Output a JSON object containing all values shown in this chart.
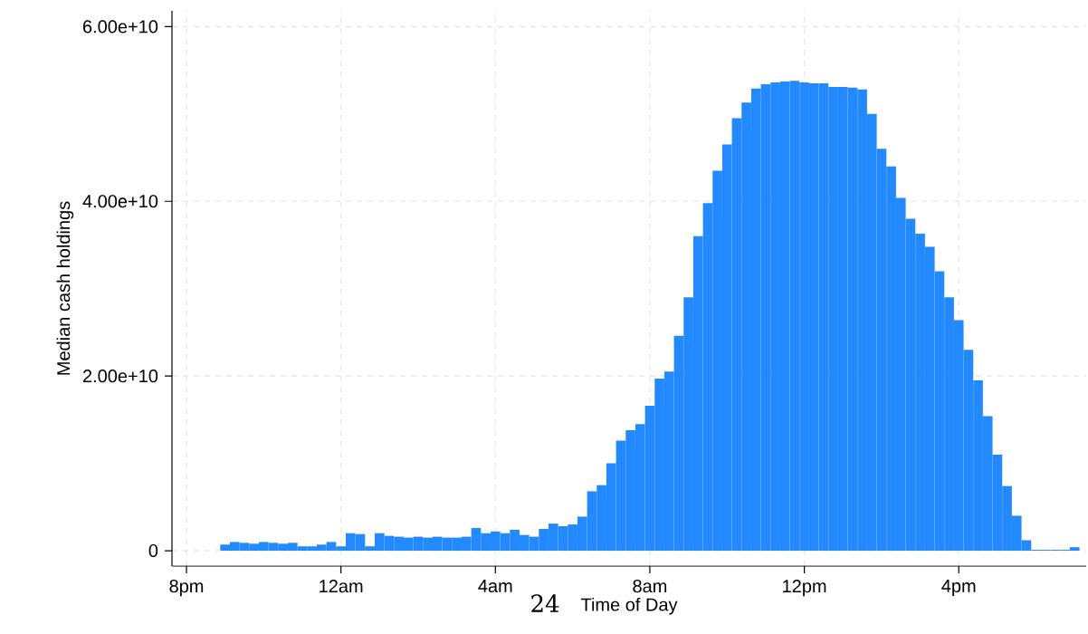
{
  "chart_data": {
    "type": "bar",
    "xlabel": "Time of Day",
    "ylabel": "Median cash holdings",
    "annotations": [
      "24"
    ],
    "categories": [
      "8pm",
      null,
      null,
      null,
      null,
      null,
      null,
      null,
      null,
      null,
      null,
      null,
      null,
      null,
      null,
      null,
      "12am",
      null,
      null,
      null,
      null,
      null,
      null,
      null,
      null,
      null,
      null,
      null,
      null,
      null,
      null,
      null,
      "4am",
      null,
      null,
      null,
      null,
      null,
      null,
      null,
      null,
      null,
      null,
      null,
      null,
      null,
      null,
      null,
      "8am",
      null,
      null,
      null,
      null,
      null,
      null,
      null,
      null,
      null,
      null,
      null,
      null,
      null,
      null,
      null,
      "12pm",
      null,
      null,
      null,
      null,
      null,
      null,
      null,
      null,
      null,
      null,
      null,
      null,
      null,
      null,
      null,
      "4pm",
      null,
      null,
      null,
      null,
      null,
      null,
      null,
      null,
      null,
      null,
      null,
      null
    ],
    "values": [
      null,
      null,
      null,
      null,
      700000000.0,
      1000000000.0,
      900000000.0,
      800000000.0,
      1000000000.0,
      900000000.0,
      800000000.0,
      900000000.0,
      500000000.0,
      500000000.0,
      700000000.0,
      1000000000.0,
      500000000.0,
      2000000000.0,
      1900000000.0,
      500000000.0,
      2000000000.0,
      1700000000.0,
      1600000000.0,
      1500000000.0,
      1600000000.0,
      1500000000.0,
      1600000000.0,
      1500000000.0,
      1500000000.0,
      1600000000.0,
      2600000000.0,
      2000000000.0,
      2200000000.0,
      2000000000.0,
      2400000000.0,
      1800000000.0,
      1600000000.0,
      2500000000.0,
      3100000000.0,
      2800000000.0,
      3000000000.0,
      3900000000.0,
      6800000000.0,
      7500000000.0,
      10000000000.0,
      12600000000.0,
      13800000000.0,
      14500000000.0,
      16600000000.0,
      19700000000.0,
      20500000000.0,
      24600000000.0,
      29000000000.0,
      36000000000.0,
      39800000000.0,
      43500000000.0,
      46500000000.0,
      49500000000.0,
      51300000000.0,
      52900000000.0,
      53400000000.0,
      53600000000.0,
      53700000000.0,
      53800000000.0,
      53600000000.0,
      53500000000.0,
      53500000000.0,
      53100000000.0,
      53100000000.0,
      53000000000.0,
      52800000000.0,
      50000000000.0,
      46000000000.0,
      44000000000.0,
      40400000000.0,
      38000000000.0,
      36300000000.0,
      34800000000.0,
      32000000000.0,
      29000000000.0,
      26400000000.0,
      23000000000.0,
      19500000000.0,
      15400000000.0,
      11000000000.0,
      7400000000.0,
      4000000000.0,
      1200000000.0,
      100000000.0,
      100000000.0,
      100000000.0,
      100000000.0,
      400000000.0
    ],
    "color": "#2389ff",
    "ylim": [
      -1760000000.0,
      61800000000.0
    ],
    "yticks": [
      0,
      {
        "value": 20000000000.0,
        "label": "2.00e+10"
      },
      {
        "value": 40000000000.0,
        "label": "4.00e+10"
      },
      {
        "value": 60000000000.0,
        "label": "6.00e+10"
      }
    ],
    "grid": true
  }
}
